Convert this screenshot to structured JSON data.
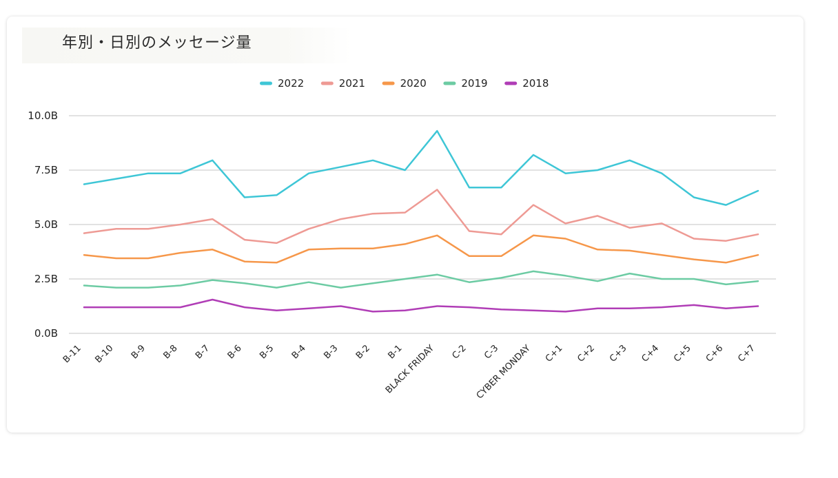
{
  "chart_data": {
    "type": "line",
    "title": "年別・日別のメッセージ量",
    "xlabel": "",
    "ylabel": "",
    "ylim": [
      0,
      10
    ],
    "ytick_values": [
      0,
      2.5,
      5.0,
      7.5,
      10.0
    ],
    "ytick_labels": [
      "0.0B",
      "2.5B",
      "5.0B",
      "7.5B",
      "10.0B"
    ],
    "grid": true,
    "legend_position": "top-center",
    "categories": [
      "B-11",
      "B-10",
      "B-9",
      "B-8",
      "B-7",
      "B-6",
      "B-5",
      "B-4",
      "B-3",
      "B-2",
      "B-1",
      "BLACK FRIDAY",
      "C-2",
      "C-3",
      "CYBER MONDAY",
      "C+1",
      "C+2",
      "C+3",
      "C+4",
      "C+5",
      "C+6",
      "C+7"
    ],
    "series": [
      {
        "name": "2022",
        "color": "#3ec6d6",
        "values": [
          6.85,
          7.1,
          7.35,
          7.35,
          7.95,
          6.25,
          6.35,
          7.35,
          7.65,
          7.95,
          7.5,
          9.3,
          6.7,
          6.7,
          8.2,
          7.35,
          7.5,
          7.95,
          7.35,
          6.25,
          5.9,
          6.55
        ]
      },
      {
        "name": "2021",
        "color": "#ee9a94",
        "values": [
          4.6,
          4.8,
          4.8,
          5.0,
          5.25,
          4.3,
          4.15,
          4.8,
          5.25,
          5.5,
          5.55,
          6.6,
          4.7,
          4.55,
          5.9,
          5.05,
          5.4,
          4.85,
          5.05,
          4.35,
          4.25,
          4.55
        ]
      },
      {
        "name": "2020",
        "color": "#f6974a",
        "values": [
          3.6,
          3.45,
          3.45,
          3.7,
          3.85,
          3.3,
          3.25,
          3.85,
          3.9,
          3.9,
          4.1,
          4.5,
          3.55,
          3.55,
          4.5,
          4.35,
          3.85,
          3.8,
          3.6,
          3.4,
          3.25,
          3.6
        ]
      },
      {
        "name": "2019",
        "color": "#6ccba3",
        "values": [
          2.2,
          2.1,
          2.1,
          2.2,
          2.45,
          2.3,
          2.1,
          2.35,
          2.1,
          2.3,
          2.5,
          2.7,
          2.35,
          2.55,
          2.85,
          2.65,
          2.4,
          2.75,
          2.5,
          2.5,
          2.25,
          2.4
        ]
      },
      {
        "name": "2018",
        "color": "#b03db6",
        "values": [
          1.2,
          1.2,
          1.2,
          1.2,
          1.55,
          1.2,
          1.05,
          1.15,
          1.25,
          1.0,
          1.05,
          1.25,
          1.2,
          1.1,
          1.05,
          1.0,
          1.15,
          1.15,
          1.2,
          1.3,
          1.15,
          1.25
        ]
      }
    ]
  }
}
